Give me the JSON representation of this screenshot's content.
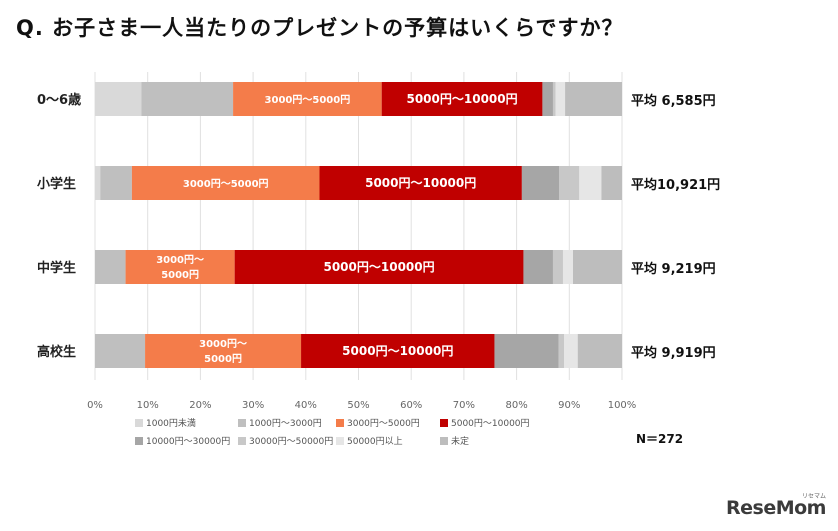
{
  "title": "Q. お子さま一人当たりのプレゼントの予算はいくらですか？",
  "n_label": "N＝272",
  "watermark": "ReseMom",
  "watermark_sub": "リセマム",
  "chart_data": {
    "type": "bar",
    "orientation": "horizontal",
    "stacked": true,
    "categories": [
      "0〜6歳",
      "小学生",
      "中学生",
      "高校生"
    ],
    "averages": [
      "平均 6,585円",
      "平均10,921円",
      "平均 9,219円",
      "平均 9,919円"
    ],
    "xlim": [
      0,
      100
    ],
    "x_ticks": [
      "0%",
      "10%",
      "20%",
      "30%",
      "40%",
      "50%",
      "60%",
      "70%",
      "80%",
      "90%",
      "100%"
    ],
    "grid": true,
    "legend_position": "bottom",
    "series": [
      {
        "name": "1000円未満",
        "color": "#d9d9d9",
        "values": [
          8.8,
          1.0,
          0.0,
          0.0
        ]
      },
      {
        "name": "1000円〜3000円",
        "color": "#bfbfbf",
        "values": [
          17.4,
          6.0,
          5.8,
          9.5
        ]
      },
      {
        "name": "3000円〜5000円",
        "color": "#f47c4a",
        "values": [
          28.2,
          35.6,
          20.7,
          29.6
        ]
      },
      {
        "name": "5000円〜10000円",
        "color": "#c00000",
        "values": [
          30.5,
          38.4,
          54.8,
          36.7
        ]
      },
      {
        "name": "10000円〜30000円",
        "color": "#a6a6a6",
        "values": [
          2.0,
          7.1,
          5.6,
          12.2
        ]
      },
      {
        "name": "30000円〜50000円",
        "color": "#c8c8c8",
        "values": [
          0.5,
          3.8,
          1.9,
          1.0
        ]
      },
      {
        "name": "50000円以上",
        "color": "#e6e6e6",
        "values": [
          1.8,
          4.2,
          1.9,
          2.6
        ]
      },
      {
        "name": "未定",
        "color": "#bdbdbd",
        "values": [
          10.8,
          3.9,
          9.3,
          8.4
        ]
      }
    ],
    "segment_labels": [
      [
        null,
        null,
        "3000円〜5000円",
        "5000円〜10000円",
        null,
        null,
        null,
        null
      ],
      [
        null,
        null,
        "3000円〜5000円",
        "5000円〜10000円",
        null,
        null,
        null,
        null
      ],
      [
        null,
        null,
        [
          "3000円〜",
          "5000円"
        ],
        "5000円〜10000円",
        null,
        null,
        null,
        null
      ],
      [
        null,
        null,
        [
          "3000円〜",
          "5000円"
        ],
        "5000円〜10000円",
        null,
        null,
        null,
        null
      ]
    ]
  }
}
